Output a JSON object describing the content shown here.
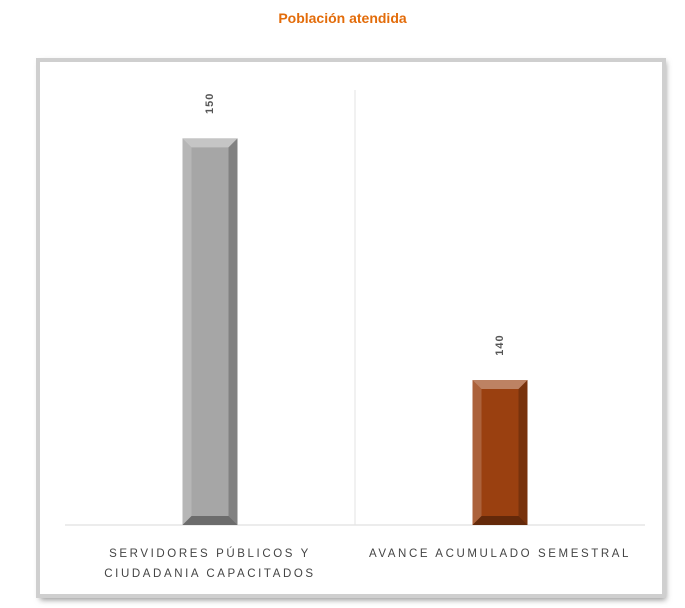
{
  "chart_data": {
    "type": "bar",
    "title": "Población atendida",
    "categories": [
      "SERVIDORES PÚBLICOS Y CIUDADANIA CAPACITADOS",
      "AVANCE ACUMULADO SEMESTRAL"
    ],
    "values": [
      150,
      140
    ],
    "colors": [
      "#a6a6a6",
      "#9a4010"
    ],
    "ylim": [
      134,
      152
    ],
    "title_color": "#e36c0a"
  }
}
